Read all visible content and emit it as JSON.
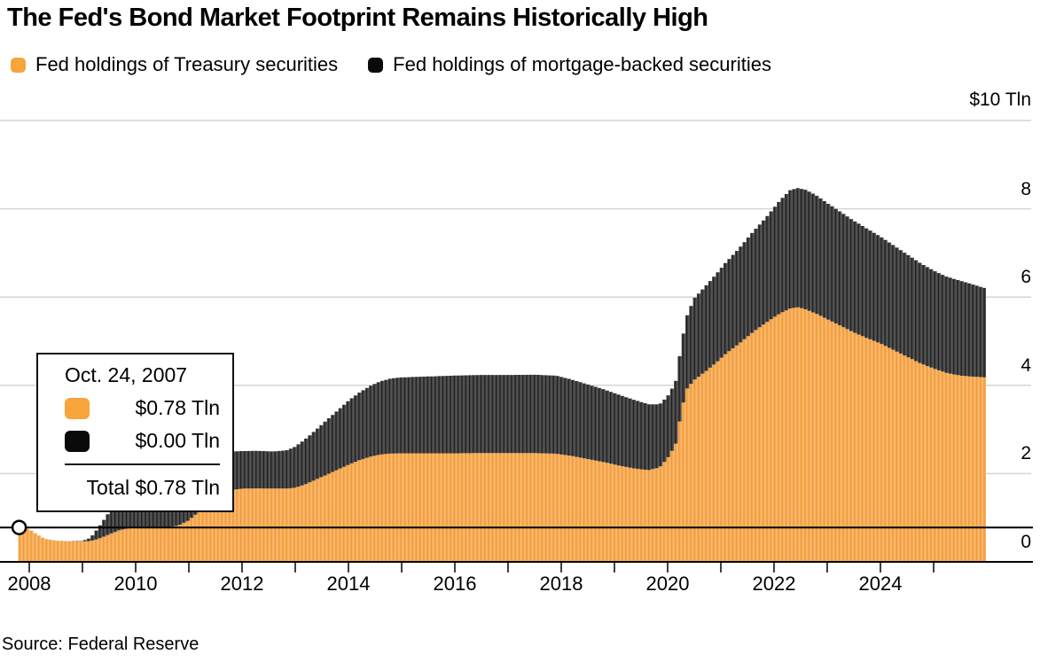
{
  "title": "The Fed's Bond Market Footprint Remains Historically High",
  "legend": {
    "items": [
      {
        "label": "Fed holdings of Treasury securities",
        "series": "treasury"
      },
      {
        "label": "Fed holdings of mortgage-backed securities",
        "series": "mbs"
      }
    ]
  },
  "source": "Source: Federal Reserve",
  "colors": {
    "treasury": "#F7A43C",
    "treasury_stripe": "#EE9A3E",
    "treasury_fill": "#F9AE57",
    "mbs": "#0A0A0A",
    "mbs_stripe": "#1E1E1E",
    "mbs_fill": "#4B4B4B",
    "grid": "#D4D4D4",
    "axis": "#000000"
  },
  "tooltip": {
    "date": "Oct. 24, 2007",
    "rows": [
      {
        "series": "treasury",
        "value": "$0.78 Tln"
      },
      {
        "series": "mbs",
        "value": "$0.00 Tln"
      }
    ],
    "total_text": "Total $0.78 Tln",
    "crosshair": {
      "year": 2007.81,
      "total_tln": 0.78
    }
  },
  "chart_data": {
    "type": "area",
    "stacked": true,
    "title": "The Fed's Bond Market Footprint Remains Historically High",
    "unit_label": "$10 Tln",
    "xlabel": "",
    "ylabel": "Tln USD",
    "ylim": [
      0,
      10
    ],
    "grid": true,
    "legend_position": "top",
    "y_ticks": [
      {
        "value": 0,
        "label": "0"
      },
      {
        "value": 2,
        "label": "2"
      },
      {
        "value": 4,
        "label": "4"
      },
      {
        "value": 6,
        "label": "6"
      },
      {
        "value": 8,
        "label": "8"
      }
    ],
    "y_gridline_values": [
      2,
      4,
      6,
      8,
      10
    ],
    "x_labeled_ticks": [
      {
        "year": 2008,
        "label": "2008"
      },
      {
        "year": 2010,
        "label": "2010"
      },
      {
        "year": 2012,
        "label": "2012"
      },
      {
        "year": 2014,
        "label": "2014"
      },
      {
        "year": 2016,
        "label": "2016"
      },
      {
        "year": 2018,
        "label": "2018"
      },
      {
        "year": 2020,
        "label": "2020"
      },
      {
        "year": 2022,
        "label": "2022"
      },
      {
        "year": 2024,
        "label": "2024"
      }
    ],
    "x_minor_tick_years": [
      2008,
      2009,
      2010,
      2011,
      2012,
      2013,
      2014,
      2015,
      2016,
      2017,
      2018,
      2019,
      2020,
      2021,
      2022,
      2023,
      2024,
      2025
    ],
    "x_range_years": [
      2007.81,
      2025.97
    ],
    "series": [
      {
        "name": "Fed holdings of Treasury securities",
        "key": "treasury"
      },
      {
        "name": "Fed holdings of mortgage-backed securities",
        "key": "mbs"
      }
    ],
    "points": [
      [
        2007.81,
        0.78,
        0.0
      ],
      [
        2008.0,
        0.74,
        0.0
      ],
      [
        2008.15,
        0.62,
        0.0
      ],
      [
        2008.3,
        0.52,
        0.0
      ],
      [
        2008.5,
        0.48,
        0.0
      ],
      [
        2008.75,
        0.47,
        0.0
      ],
      [
        2009.0,
        0.465,
        0.01
      ],
      [
        2009.15,
        0.47,
        0.07
      ],
      [
        2009.3,
        0.52,
        0.25
      ],
      [
        2009.5,
        0.62,
        0.5
      ],
      [
        2009.7,
        0.72,
        0.72
      ],
      [
        2009.9,
        0.765,
        0.85
      ],
      [
        2010.1,
        0.776,
        1.0
      ],
      [
        2010.3,
        0.777,
        1.09
      ],
      [
        2010.55,
        0.78,
        1.12
      ],
      [
        2010.8,
        0.82,
        1.09
      ],
      [
        2011.0,
        0.94,
        1.03
      ],
      [
        2011.2,
        1.15,
        0.95
      ],
      [
        2011.4,
        1.38,
        0.91
      ],
      [
        2011.6,
        1.55,
        0.89
      ],
      [
        2011.8,
        1.63,
        0.87
      ],
      [
        2012.0,
        1.66,
        0.85
      ],
      [
        2012.3,
        1.665,
        0.85
      ],
      [
        2012.6,
        1.66,
        0.84
      ],
      [
        2012.85,
        1.66,
        0.87
      ],
      [
        2013.0,
        1.68,
        0.93
      ],
      [
        2013.2,
        1.76,
        1.03
      ],
      [
        2013.4,
        1.87,
        1.13
      ],
      [
        2013.6,
        1.98,
        1.24
      ],
      [
        2013.8,
        2.09,
        1.34
      ],
      [
        2014.0,
        2.2,
        1.45
      ],
      [
        2014.2,
        2.3,
        1.53
      ],
      [
        2014.4,
        2.38,
        1.6
      ],
      [
        2014.6,
        2.43,
        1.66
      ],
      [
        2014.8,
        2.455,
        1.7
      ],
      [
        2015.0,
        2.46,
        1.72
      ],
      [
        2015.5,
        2.46,
        1.74
      ],
      [
        2016.0,
        2.46,
        1.76
      ],
      [
        2016.5,
        2.465,
        1.77
      ],
      [
        2017.0,
        2.465,
        1.77
      ],
      [
        2017.5,
        2.465,
        1.775
      ],
      [
        2017.9,
        2.45,
        1.77
      ],
      [
        2018.2,
        2.4,
        1.73
      ],
      [
        2018.5,
        2.33,
        1.69
      ],
      [
        2018.8,
        2.26,
        1.65
      ],
      [
        2019.1,
        2.18,
        1.6
      ],
      [
        2019.4,
        2.11,
        1.55
      ],
      [
        2019.65,
        2.08,
        1.49
      ],
      [
        2019.85,
        2.14,
        1.43
      ],
      [
        2020.0,
        2.35,
        1.4
      ],
      [
        2020.15,
        2.65,
        1.42
      ],
      [
        2020.25,
        3.35,
        1.5
      ],
      [
        2020.35,
        3.9,
        1.63
      ],
      [
        2020.5,
        4.12,
        1.85
      ],
      [
        2020.7,
        4.3,
        1.93
      ],
      [
        2020.9,
        4.5,
        2.0
      ],
      [
        2021.1,
        4.72,
        2.07
      ],
      [
        2021.35,
        4.95,
        2.16
      ],
      [
        2021.6,
        5.2,
        2.27
      ],
      [
        2021.85,
        5.42,
        2.38
      ],
      [
        2022.1,
        5.62,
        2.55
      ],
      [
        2022.3,
        5.74,
        2.68
      ],
      [
        2022.45,
        5.77,
        2.7
      ],
      [
        2022.6,
        5.72,
        2.71
      ],
      [
        2022.8,
        5.62,
        2.68
      ],
      [
        2023.0,
        5.5,
        2.63
      ],
      [
        2023.25,
        5.35,
        2.58
      ],
      [
        2023.5,
        5.2,
        2.53
      ],
      [
        2023.75,
        5.07,
        2.48
      ],
      [
        2024.0,
        4.95,
        2.42
      ],
      [
        2024.25,
        4.8,
        2.37
      ],
      [
        2024.5,
        4.65,
        2.32
      ],
      [
        2024.75,
        4.5,
        2.27
      ],
      [
        2025.0,
        4.38,
        2.22
      ],
      [
        2025.25,
        4.28,
        2.18
      ],
      [
        2025.5,
        4.22,
        2.15
      ],
      [
        2025.7,
        4.2,
        2.1
      ],
      [
        2025.97,
        4.18,
        2.02
      ]
    ]
  }
}
